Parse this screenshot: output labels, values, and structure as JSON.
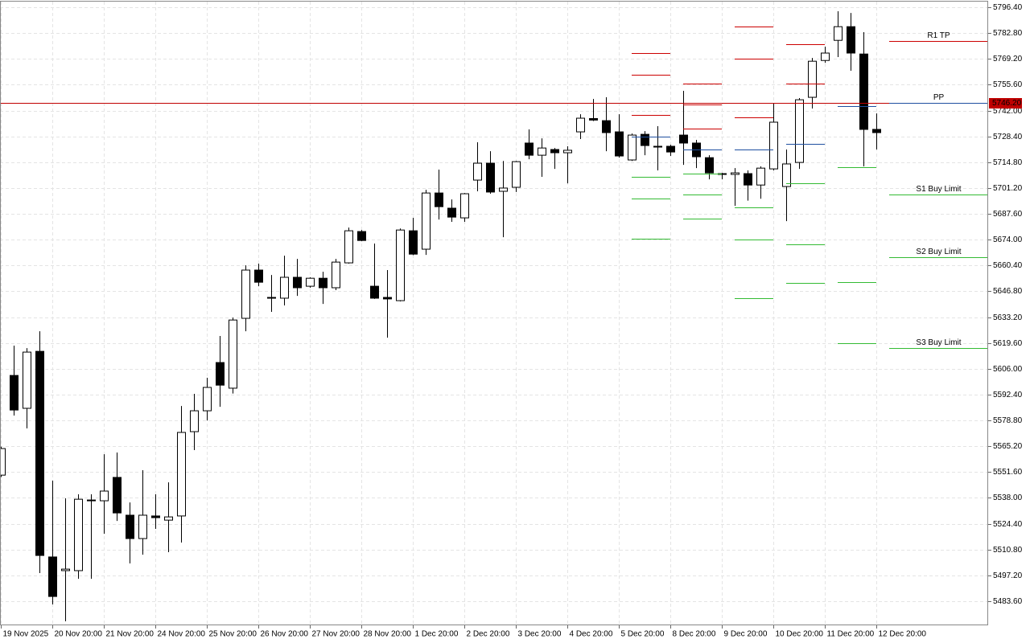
{
  "chart_data": {
    "type": "candlestick",
    "categories": [
      "19 Nov 2025",
      null,
      null,
      null,
      "20 Nov 20:00",
      null,
      null,
      null,
      "21 Nov 20:00",
      null,
      null,
      null,
      "24 Nov 20:00",
      null,
      null,
      null,
      "25 Nov 20:00",
      null,
      null,
      null,
      "26 Nov 20:00",
      null,
      null,
      null,
      "27 Nov 20:00",
      null,
      null,
      null,
      "28 Nov 20:00",
      null,
      null,
      null,
      "1 Dec 20:00",
      null,
      null,
      null,
      "2 Dec 20:00",
      null,
      null,
      null,
      "3 Dec 20:00",
      null,
      null,
      null,
      "4 Dec 20:00",
      null,
      null,
      null,
      "5 Dec 20:00",
      null,
      null,
      null,
      "8 Dec 20:00",
      null,
      null,
      null,
      "9 Dec 20:00",
      null,
      null,
      null,
      "10 Dec 20:00",
      null,
      null,
      null,
      "11 Dec 20:00",
      null,
      null,
      null,
      "12 Dec 20:00"
    ],
    "open": [
      5550.0,
      5602.5,
      5585.2,
      5615.2,
      5506.9,
      5499.7,
      5499.7,
      5536.5,
      5536.5,
      5548.8,
      5528.9,
      5516.6,
      5528.5,
      5526.3,
      5528.5,
      5572.9,
      5583.9,
      5609.3,
      5595.8,
      5632.6,
      5658.0,
      5643.6,
      5643.2,
      5654.2,
      5649.5,
      5653.7,
      5648.7,
      5661.8,
      5678.3,
      5649.5,
      5643.6,
      5641.9,
      5678.7,
      5669.0,
      5698.6,
      5690.6,
      5685.5,
      5705.4,
      5714.3,
      5699.5,
      5701.6,
      5724.9,
      5718.5,
      5721.5,
      5719.8,
      5730.8,
      5737.8,
      5736.7,
      5730.8,
      5716.0,
      5729.5,
      5723.2,
      5723.2,
      5729.1,
      5724.9,
      5717.2,
      5708.8,
      5708.4,
      5708.8,
      5702.8,
      5711.3,
      5702.0,
      5714.7,
      5749.0,
      5768.4,
      5779.0,
      5786.2,
      5771.8,
      5732.1
    ],
    "high": [
      5565.0,
      5618.2,
      5616.9,
      5625.8,
      5547.1,
      5537.8,
      5539.9,
      5539.9,
      5561.0,
      5561.9,
      5535.6,
      5552.6,
      5539.9,
      5546.2,
      5586.4,
      5592.8,
      5601.3,
      5623.3,
      5633.0,
      5660.5,
      5661.4,
      5655.4,
      5665.6,
      5663.9,
      5654.2,
      5657.1,
      5663.9,
      5680.4,
      5679.1,
      5672.0,
      5658.0,
      5679.9,
      5685.5,
      5700.3,
      5710.9,
      5695.2,
      5698.6,
      5725.3,
      5720.6,
      5715.5,
      5715.5,
      5732.1,
      5727.4,
      5722.3,
      5723.2,
      5740.1,
      5748.1,
      5749.0,
      5740.1,
      5729.9,
      5731.2,
      5733.8,
      5724.0,
      5752.4,
      5726.6,
      5718.5,
      5709.2,
      5711.7,
      5710.5,
      5712.6,
      5746.0,
      5721.5,
      5748.6,
      5769.7,
      5775.7,
      5794.3,
      5793.4,
      5783.3,
      5740.5
    ],
    "low": [
      5549.0,
      5581.4,
      5574.6,
      5498.4,
      5481.9,
      5473.0,
      5495.4,
      5495.4,
      5519.1,
      5525.9,
      5503.5,
      5508.1,
      5521.7,
      5509.4,
      5514.5,
      5563.2,
      5578.8,
      5586.0,
      5593.0,
      5625.8,
      5649.5,
      5636.0,
      5639.4,
      5644.4,
      5648.7,
      5640.2,
      5647.4,
      5661.4,
      5673.2,
      5642.8,
      5622.4,
      5641.5,
      5665.9,
      5666.0,
      5684.6,
      5683.4,
      5683.4,
      5699.5,
      5698.2,
      5675.3,
      5699.1,
      5716.4,
      5707.1,
      5711.3,
      5703.7,
      5727.0,
      5736.5,
      5720.6,
      5717.2,
      5715.5,
      5718.5,
      5710.5,
      5718.1,
      5713.4,
      5711.7,
      5705.8,
      5705.8,
      5691.8,
      5694.6,
      5695.6,
      5710.5,
      5683.8,
      5711.3,
      5743.1,
      5767.2,
      5770.2,
      5763.0,
      5712.6,
      5721.5
    ],
    "close": [
      5564.0,
      5584.3,
      5614.8,
      5507.7,
      5486.1,
      5500.5,
      5537.3,
      5536.9,
      5541.6,
      5530.1,
      5516.6,
      5528.9,
      5527.6,
      5528.0,
      5572.5,
      5583.9,
      5596.2,
      5597.4,
      5631.7,
      5658.0,
      5651.6,
      5643.2,
      5654.2,
      5648.7,
      5653.7,
      5648.7,
      5662.2,
      5678.7,
      5673.6,
      5643.2,
      5642.8,
      5679.1,
      5666.4,
      5698.6,
      5691.4,
      5685.9,
      5698.2,
      5714.3,
      5699.1,
      5701.2,
      5715.1,
      5718.5,
      5722.3,
      5719.8,
      5721.1,
      5738.0,
      5737.0,
      5730.4,
      5718.1,
      5729.1,
      5723.6,
      5722.8,
      5720.2,
      5724.9,
      5717.7,
      5709.2,
      5708.4,
      5709.2,
      5702.8,
      5711.7,
      5735.9,
      5713.9,
      5747.7,
      5768.0,
      5772.3,
      5786.2,
      5772.3,
      5732.1,
      5730.4
    ],
    "up_color": "#ffffff",
    "down_color": "#000000",
    "wick_color": "#000000",
    "ylim": [
      5470.9,
      5799.4
    ],
    "yticks": [
      {
        "value": 5796.4,
        "label": "5796.40"
      },
      {
        "value": 5782.8,
        "label": "5782.80"
      },
      {
        "value": 5769.2,
        "label": "5769.20"
      },
      {
        "value": 5755.6,
        "label": "5755.60"
      },
      {
        "value": 5742,
        "label": "5742.00"
      },
      {
        "value": 5728.4,
        "label": "5728.40"
      },
      {
        "value": 5714.8,
        "label": "5714.80"
      },
      {
        "value": 5701.2,
        "label": "5701.20"
      },
      {
        "value": 5687.6,
        "label": "5687.60"
      },
      {
        "value": 5674,
        "label": "5674.00"
      },
      {
        "value": 5660.4,
        "label": "5660.40"
      },
      {
        "value": 5646.8,
        "label": "5646.80"
      },
      {
        "value": 5633.2,
        "label": "5633.20"
      },
      {
        "value": 5619.6,
        "label": "5619.60"
      },
      {
        "value": 5606,
        "label": "5606.00"
      },
      {
        "value": 5592.4,
        "label": "5592.40"
      },
      {
        "value": 5578.8,
        "label": "5578.80"
      },
      {
        "value": 5565.2,
        "label": "5565.20"
      },
      {
        "value": 5551.6,
        "label": "5551.60"
      },
      {
        "value": 5538,
        "label": "5538.00"
      },
      {
        "value": 5524.4,
        "label": "5524.40"
      },
      {
        "value": 5510.8,
        "label": "5510.80"
      },
      {
        "value": 5497.2,
        "label": "5497.20"
      },
      {
        "value": 5483.6,
        "label": "5483.60"
      }
    ],
    "grid": true,
    "current_price": {
      "value": 5746.2,
      "label": "5746.20",
      "color": "#c00000"
    },
    "pivot_colors": {
      "resistance": "#cc0000",
      "pivot": "#1e4fa0",
      "support": "#33bb33"
    },
    "pivots": [
      {
        "start": 49,
        "end": 52,
        "resistance": [
          5739.7,
          5760.8,
          5772.3
        ],
        "pivot": 5728.3,
        "support": [
          5707.1,
          5695.7,
          5674.5
        ]
      },
      {
        "start": 53,
        "end": 56,
        "resistance": [
          5732.5,
          5745.2,
          5756.2
        ],
        "pivot": 5721.5,
        "support": [
          5708.8,
          5697.8,
          5685.1
        ]
      },
      {
        "start": 57,
        "end": 60,
        "resistance": [
          5738.4,
          5769.3,
          5786.2
        ],
        "pivot": 5721.5,
        "support": [
          5691.0,
          5674.1,
          5643.2
        ]
      },
      {
        "start": 61,
        "end": 64,
        "resistance": [
          5756.2,
          5776.9
        ],
        "pivot": 5724.4,
        "support": [
          5703.7,
          5671.5,
          5651.2
        ]
      },
      {
        "start": 65,
        "end": 68,
        "resistance": [],
        "pivot": 5744.3,
        "support": [
          5712.2,
          5651.6,
          5619.5
        ]
      }
    ],
    "projection": {
      "start": 69,
      "levels": [
        {
          "label": "R1 TP",
          "value": 5778.6,
          "color": "#cc0000"
        },
        {
          "label": "PP",
          "value": 5746.0,
          "color": "#1e4fa0"
        },
        {
          "label": "S1 Buy Limit",
          "value": 5697.8,
          "color": "#33bb33"
        },
        {
          "label": "S2 Buy Limit",
          "value": 5664.8,
          "color": "#33bb33"
        },
        {
          "label": "S3 Buy Limit",
          "value": 5616.9,
          "color": "#33bb33"
        }
      ]
    }
  }
}
